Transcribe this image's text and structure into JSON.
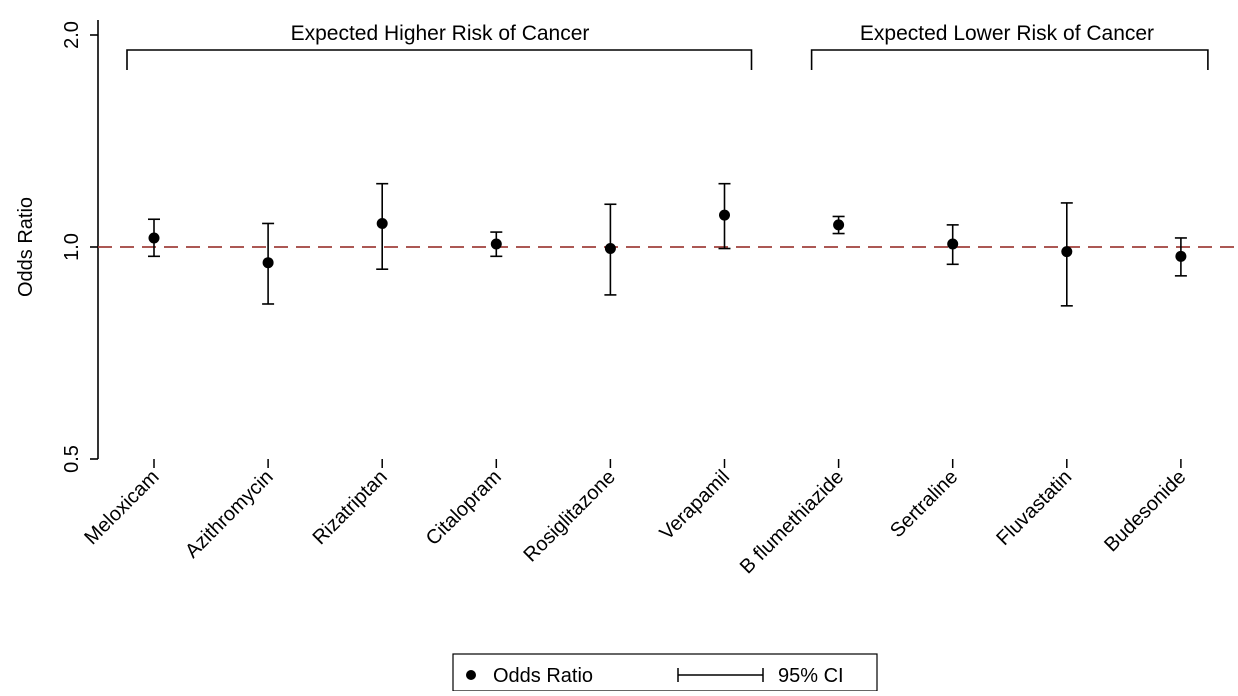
{
  "chart_data": {
    "type": "scatter",
    "ylabel": "Odds Ratio",
    "y_scale": "log",
    "ylim": [
      0.5,
      2.0
    ],
    "y_ticks": [
      {
        "value": 0.5,
        "label": "0.5"
      },
      {
        "value": 1.0,
        "label": "1.0"
      },
      {
        "value": 2.0,
        "label": "2.0"
      }
    ],
    "reference_line": {
      "y": 1.0,
      "style": "dashed",
      "color": "#a0403c"
    },
    "groups": [
      {
        "label": "Expected Higher Risk of Cancer",
        "from": "Meloxicam",
        "to": "Verapamil"
      },
      {
        "label": "Expected Lower Risk of Cancer",
        "from": "B flumethiazide",
        "to": "Budesonide"
      }
    ],
    "categories": [
      "Meloxicam",
      "Azithromycin",
      "Rizatriptan",
      "Citalopram",
      "Rosiglitazone",
      "Verapamil",
      "B flumethiazide",
      "Sertraline",
      "Fluvastatin",
      "Budesonide"
    ],
    "series": [
      {
        "name": "Odds Ratio",
        "values": [
          1.03,
          0.95,
          1.08,
          1.01,
          0.995,
          1.11,
          1.075,
          1.01,
          0.985,
          0.97
        ],
        "ci_lower": [
          0.97,
          0.83,
          0.93,
          0.97,
          0.855,
          0.995,
          1.045,
          0.945,
          0.825,
          0.91
        ],
        "ci_upper": [
          1.095,
          1.08,
          1.23,
          1.05,
          1.15,
          1.23,
          1.105,
          1.075,
          1.155,
          1.03
        ]
      }
    ],
    "legend": {
      "placement": "bottom-center",
      "items": [
        {
          "label": "Odds Ratio",
          "symbol": "dot"
        },
        {
          "label": "95% CI",
          "symbol": "capped-line"
        }
      ]
    },
    "grid": false,
    "colors": {
      "marker": "#000000",
      "reference": "#a0403c",
      "axis": "#000000"
    }
  }
}
